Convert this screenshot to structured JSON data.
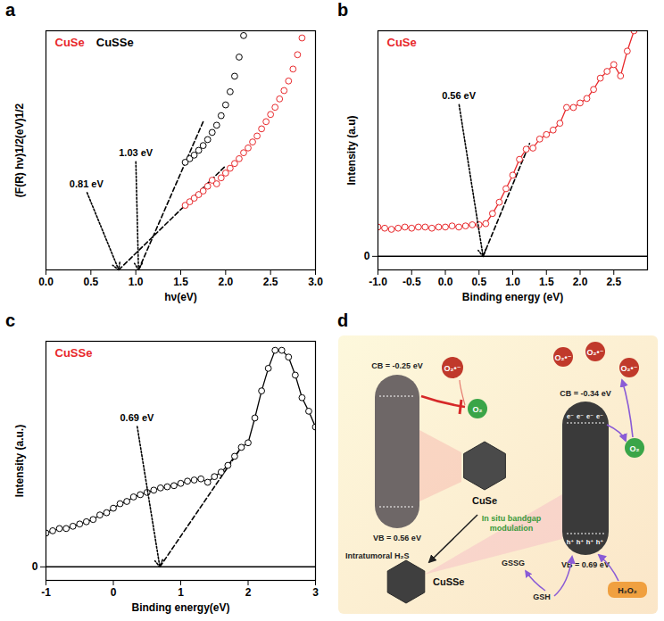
{
  "chart_data": [
    {
      "panel": "a",
      "type": "scatter",
      "x_label": "hν(eV)",
      "y_label": "(F(R) hν)1/2(eV)1/2",
      "xlim": [
        0,
        3
      ],
      "xticks": [
        {
          "value": 0,
          "label": "0.0"
        },
        0.5,
        {
          "value": 1,
          "label": "1.0"
        },
        1.5,
        {
          "value": 2,
          "label": "2.0"
        },
        2.5,
        {
          "value": 3,
          "label": "3.0"
        }
      ],
      "ylim": [
        0,
        10
      ],
      "yticks": [],
      "tick_labels": "x",
      "legend": "top-left",
      "series": [
        {
          "name": "CuSe",
          "color": "#e8282b",
          "marker": "circle",
          "x": [
            1.55,
            1.6,
            1.65,
            1.7,
            1.75,
            1.8,
            1.85,
            1.9,
            1.95,
            2.0,
            2.05,
            2.1,
            2.15,
            2.2,
            2.25,
            2.3,
            2.35,
            2.4,
            2.45,
            2.5,
            2.55,
            2.6,
            2.65,
            2.7,
            2.75,
            2.8,
            2.85
          ],
          "values": [
            2.7,
            2.85,
            3.0,
            3.15,
            3.3,
            3.5,
            3.75,
            3.6,
            3.85,
            4.05,
            4.25,
            4.45,
            4.65,
            4.9,
            5.1,
            5.35,
            5.6,
            5.9,
            6.2,
            6.5,
            6.8,
            7.15,
            7.5,
            7.9,
            8.4,
            9.0,
            9.7
          ]
        },
        {
          "name": "CuSSe",
          "color": "#000000",
          "marker": "circle",
          "x": [
            1.55,
            1.6,
            1.65,
            1.7,
            1.75,
            1.8,
            1.85,
            1.9,
            1.95,
            2.0,
            2.05,
            2.1,
            2.15,
            2.2
          ],
          "values": [
            4.5,
            4.65,
            4.8,
            5.0,
            5.2,
            5.45,
            5.75,
            6.05,
            6.45,
            6.9,
            7.45,
            8.1,
            8.9,
            9.8
          ]
        }
      ],
      "tangent_lines": [
        {
          "color": "#000000",
          "x": [
            0.81,
            2.0
          ],
          "y": [
            0,
            4.35
          ]
        },
        {
          "color": "#000000",
          "x": [
            1.03,
            1.75
          ],
          "y": [
            0,
            6.2
          ]
        }
      ],
      "annotations": [
        {
          "text": "0.81 eV",
          "x": 0.45,
          "y": 3.3,
          "target_x": 0.81,
          "target_y": 0
        },
        {
          "text": "1.03 eV",
          "x": 1.0,
          "y": 4.6,
          "target_x": 1.03,
          "target_y": 0
        }
      ]
    },
    {
      "panel": "b",
      "type": "line",
      "title": "CuSe",
      "x_label": "Binding energy (eV)",
      "y_label": "Intensity (a.u)",
      "xlim": [
        -1,
        3
      ],
      "xticks": [
        {
          "value": -1,
          "label": "-1.0"
        },
        -0.5,
        {
          "value": 0,
          "label": "0.0"
        },
        0.5,
        {
          "value": 1,
          "label": "1.0"
        },
        1.5,
        {
          "value": 2,
          "label": "2.0"
        },
        2.5
      ],
      "ylim": [
        -0.6,
        10
      ],
      "yticks": [
        0
      ],
      "color": "#e8282b",
      "marker": "circle",
      "x": [
        -1.0,
        -0.9,
        -0.8,
        -0.7,
        -0.6,
        -0.5,
        -0.4,
        -0.3,
        -0.2,
        -0.1,
        0.0,
        0.1,
        0.2,
        0.3,
        0.4,
        0.5,
        0.6,
        0.7,
        0.8,
        0.9,
        1.0,
        1.1,
        1.2,
        1.3,
        1.4,
        1.5,
        1.6,
        1.7,
        1.8,
        1.9,
        2.0,
        2.1,
        2.2,
        2.3,
        2.4,
        2.5,
        2.6,
        2.7,
        2.8
      ],
      "values": [
        1.3,
        1.25,
        1.2,
        1.25,
        1.3,
        1.25,
        1.3,
        1.3,
        1.25,
        1.3,
        1.3,
        1.35,
        1.3,
        1.35,
        1.4,
        1.4,
        1.45,
        1.9,
        2.4,
        3.0,
        3.6,
        4.3,
        4.75,
        4.8,
        5.2,
        5.4,
        5.6,
        5.9,
        6.6,
        6.6,
        6.8,
        7.0,
        7.4,
        7.9,
        8.2,
        8.5,
        8.0,
        9.1,
        10.0
      ],
      "tangent_lines": [
        {
          "color": "#000000",
          "x": [
            0.56,
            1.25
          ],
          "y": [
            0,
            5.0
          ]
        }
      ],
      "annotations": [
        {
          "text": "0.56 eV",
          "x": 0.2,
          "y": 6.8,
          "target_x": 0.56,
          "target_y": 0
        }
      ]
    },
    {
      "panel": "c",
      "type": "line",
      "title": "CuSSe",
      "x_label": "Binding energy(eV)",
      "y_label": "Intensity (a.u.)",
      "xlim": [
        -1,
        3
      ],
      "xticks": [
        -1,
        0,
        1,
        2,
        3
      ],
      "ylim": [
        -0.6,
        10
      ],
      "yticks": [
        0
      ],
      "color": "#000000",
      "marker": "circle",
      "x": [
        -1.0,
        -0.9,
        -0.8,
        -0.7,
        -0.6,
        -0.5,
        -0.4,
        -0.3,
        -0.2,
        -0.1,
        0.0,
        0.1,
        0.2,
        0.3,
        0.4,
        0.5,
        0.6,
        0.7,
        0.8,
        0.9,
        1.0,
        1.1,
        1.2,
        1.3,
        1.4,
        1.5,
        1.6,
        1.7,
        1.8,
        1.9,
        2.0,
        2.1,
        2.2,
        2.3,
        2.4,
        2.5,
        2.6,
        2.7,
        2.8,
        2.9,
        3.0
      ],
      "values": [
        1.5,
        1.6,
        1.7,
        1.7,
        1.8,
        1.9,
        2.0,
        2.1,
        2.3,
        2.4,
        2.6,
        2.8,
        2.9,
        3.1,
        3.2,
        3.3,
        3.4,
        3.5,
        3.55,
        3.6,
        3.7,
        3.8,
        3.85,
        3.9,
        3.75,
        4.0,
        4.2,
        4.5,
        4.9,
        5.3,
        5.5,
        6.6,
        7.8,
        8.8,
        9.6,
        9.6,
        9.3,
        8.5,
        7.5,
        6.9,
        6.2
      ],
      "tangent_lines": [
        {
          "color": "#000000",
          "x": [
            0.69,
            1.9
          ],
          "y": [
            0,
            5.3
          ]
        }
      ],
      "annotations": [
        {
          "text": "0.69 eV",
          "x": 0.35,
          "y": 6.3,
          "target_x": 0.69,
          "target_y": 0
        }
      ]
    }
  ],
  "diagram": {
    "panel": "d",
    "left_band": {
      "material": "CuSe",
      "cb": "CB = -0.25 eV",
      "vb": "VB = 0.56 eV",
      "product": "O₂•⁻",
      "reactant": "O₂"
    },
    "transition": {
      "reagent": "Intratumoral H₂S",
      "process": "In situ bandgap modulation"
    },
    "right_band": {
      "material": "CuSSe",
      "cb": "CB = -0.34 eV",
      "vb": "VB = 0.69 eV",
      "electron": "e⁻",
      "hole": "h⁺",
      "product": "O₂•⁻",
      "reactant": "O₂",
      "oxidant": "H₂O₂",
      "reductant": "GSH",
      "oxidized": "GSSG"
    }
  }
}
